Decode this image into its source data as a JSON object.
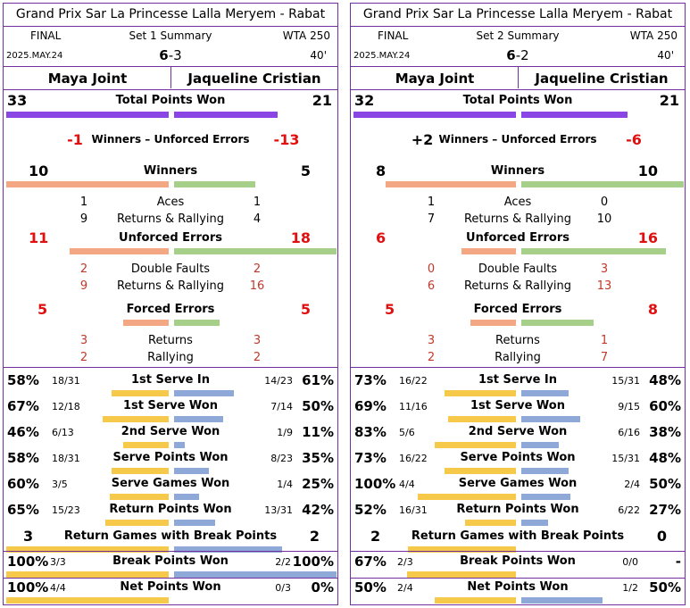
{
  "panels": [
    {
      "tournament": "Grand Prix Sar La Princesse Lalla Meryem - Rabat",
      "round": "FINAL",
      "set_label": "Set 1 Summary",
      "tour": "WTA 250",
      "date": "2025.MAY.24",
      "score_p1": "6",
      "score_sep": "-",
      "score_p2": "3",
      "duration": "40'",
      "player1": "Maya Joint",
      "player2": "Jaqueline Cristian",
      "total_points": {
        "label": "Total Points Won",
        "p1": "33",
        "p2": "21"
      },
      "winners_ue": {
        "label": "Winners – Unforced Errors",
        "p1": "-1",
        "p2": "-13",
        "p1_color": "#e01010",
        "p2_color": "#e01010"
      },
      "winners": {
        "label": "Winners",
        "p1": "10",
        "p2": "5",
        "rows": [
          {
            "label": "Aces",
            "p1": "1",
            "p2": "1"
          },
          {
            "label": "Returns & Rallying",
            "p1": "9",
            "p2": "4"
          }
        ]
      },
      "unforced": {
        "label": "Unforced Errors",
        "p1": "11",
        "p2": "18",
        "rows": [
          {
            "label": "Double Faults",
            "p1": "2",
            "p2": "2"
          },
          {
            "label": "Returns & Rallying",
            "p1": "9",
            "p2": "16"
          }
        ]
      },
      "forced": {
        "label": "Forced Errors",
        "p1": "5",
        "p2": "5",
        "rows": [
          {
            "label": "Returns",
            "p1": "3",
            "p2": "3"
          },
          {
            "label": "Rallying",
            "p1": "2",
            "p2": "2"
          }
        ]
      },
      "serve_stats": [
        {
          "label": "1st Serve In",
          "p1_pct": "58%",
          "p1_frac": "18/31",
          "p2_frac": "14/23",
          "p2_pct": "61%",
          "p1_val": 0.58,
          "p2_val": 0.61
        },
        {
          "label": "1st Serve Won",
          "p1_pct": "67%",
          "p1_frac": "12/18",
          "p2_frac": "7/14",
          "p2_pct": "50%",
          "p1_val": 0.67,
          "p2_val": 0.5
        },
        {
          "label": "2nd Serve Won",
          "p1_pct": "46%",
          "p1_frac": "6/13",
          "p2_frac": "1/9",
          "p2_pct": "11%",
          "p1_val": 0.46,
          "p2_val": 0.11
        },
        {
          "label": "Serve Points Won",
          "p1_pct": "58%",
          "p1_frac": "18/31",
          "p2_frac": "8/23",
          "p2_pct": "35%",
          "p1_val": 0.58,
          "p2_val": 0.35
        },
        {
          "label": "Serve Games Won",
          "p1_pct": "60%",
          "p1_frac": "3/5",
          "p2_frac": "1/4",
          "p2_pct": "25%",
          "p1_val": 0.6,
          "p2_val": 0.25
        },
        {
          "label": "Return Points Won",
          "p1_pct": "65%",
          "p1_frac": "15/23",
          "p2_frac": "13/31",
          "p2_pct": "42%",
          "p1_val": 0.65,
          "p2_val": 0.42
        }
      ],
      "break_games": {
        "label": "Return Games with Break Points",
        "p1": "3",
        "p2": "2",
        "p1_val": 3,
        "p2_val": 2
      },
      "bottom_stats": [
        {
          "label": "Break Points Won",
          "p1_pct": "100%",
          "p1_frac": "3/3",
          "p2_frac": "2/2",
          "p2_pct": "100%",
          "p1_val": 1.0,
          "p2_val": 1.0
        },
        {
          "label": "Net Points Won",
          "p1_pct": "100%",
          "p1_frac": "4/4",
          "p2_frac": "0/3",
          "p2_pct": "0%",
          "p1_val": 1.0,
          "p2_val": 0.0
        }
      ]
    },
    {
      "tournament": "Grand Prix Sar La Princesse Lalla Meryem - Rabat",
      "round": "FINAL",
      "set_label": "Set 2 Summary",
      "tour": "WTA 250",
      "date": "2025.MAY.24",
      "score_p1": "6",
      "score_sep": "-",
      "score_p2": "2",
      "duration": "40'",
      "player1": "Maya Joint",
      "player2": "Jaqueline Cristian",
      "total_points": {
        "label": "Total Points Won",
        "p1": "32",
        "p2": "21"
      },
      "winners_ue": {
        "label": "Winners – Unforced Errors",
        "p1": "+2",
        "p2": "-6",
        "p1_color": "#000000",
        "p2_color": "#e01010"
      },
      "winners": {
        "label": "Winners",
        "p1": "8",
        "p2": "10",
        "rows": [
          {
            "label": "Aces",
            "p1": "1",
            "p2": "0"
          },
          {
            "label": "Returns & Rallying",
            "p1": "7",
            "p2": "10"
          }
        ]
      },
      "unforced": {
        "label": "Unforced Errors",
        "p1": "6",
        "p2": "16",
        "rows": [
          {
            "label": "Double Faults",
            "p1": "0",
            "p2": "3"
          },
          {
            "label": "Returns & Rallying",
            "p1": "6",
            "p2": "13"
          }
        ]
      },
      "forced": {
        "label": "Forced Errors",
        "p1": "5",
        "p2": "8",
        "rows": [
          {
            "label": "Returns",
            "p1": "3",
            "p2": "1"
          },
          {
            "label": "Rallying",
            "p1": "2",
            "p2": "7"
          }
        ]
      },
      "serve_stats": [
        {
          "label": "1st Serve In",
          "p1_pct": "73%",
          "p1_frac": "16/22",
          "p2_frac": "15/31",
          "p2_pct": "48%",
          "p1_val": 0.73,
          "p2_val": 0.48
        },
        {
          "label": "1st Serve Won",
          "p1_pct": "69%",
          "p1_frac": "11/16",
          "p2_frac": "9/15",
          "p2_pct": "60%",
          "p1_val": 0.69,
          "p2_val": 0.6
        },
        {
          "label": "2nd Serve Won",
          "p1_pct": "83%",
          "p1_frac": "5/6",
          "p2_frac": "6/16",
          "p2_pct": "38%",
          "p1_val": 0.83,
          "p2_val": 0.38
        },
        {
          "label": "Serve Points Won",
          "p1_pct": "73%",
          "p1_frac": "16/22",
          "p2_frac": "15/31",
          "p2_pct": "48%",
          "p1_val": 0.73,
          "p2_val": 0.48
        },
        {
          "label": "Serve Games Won",
          "p1_pct": "100%",
          "p1_frac": "4/4",
          "p2_frac": "2/4",
          "p2_pct": "50%",
          "p1_val": 1.0,
          "p2_val": 0.5
        },
        {
          "label": "Return Points Won",
          "p1_pct": "52%",
          "p1_frac": "16/31",
          "p2_frac": "6/22",
          "p2_pct": "27%",
          "p1_val": 0.52,
          "p2_val": 0.27
        }
      ],
      "break_games": {
        "label": "Return Games with Break Points",
        "p1": "2",
        "p2": "0",
        "p1_val": 2,
        "p2_val": 0
      },
      "bottom_stats": [
        {
          "label": "Break Points Won",
          "p1_pct": "67%",
          "p1_frac": "2/3",
          "p2_frac": "0/0",
          "p2_pct": "-",
          "p1_val": 0.67,
          "p2_val": 0.0
        },
        {
          "label": "Net Points Won",
          "p1_pct": "50%",
          "p1_frac": "2/4",
          "p2_frac": "1/2",
          "p2_pct": "50%",
          "p1_val": 0.5,
          "p2_val": 0.5
        }
      ]
    }
  ]
}
